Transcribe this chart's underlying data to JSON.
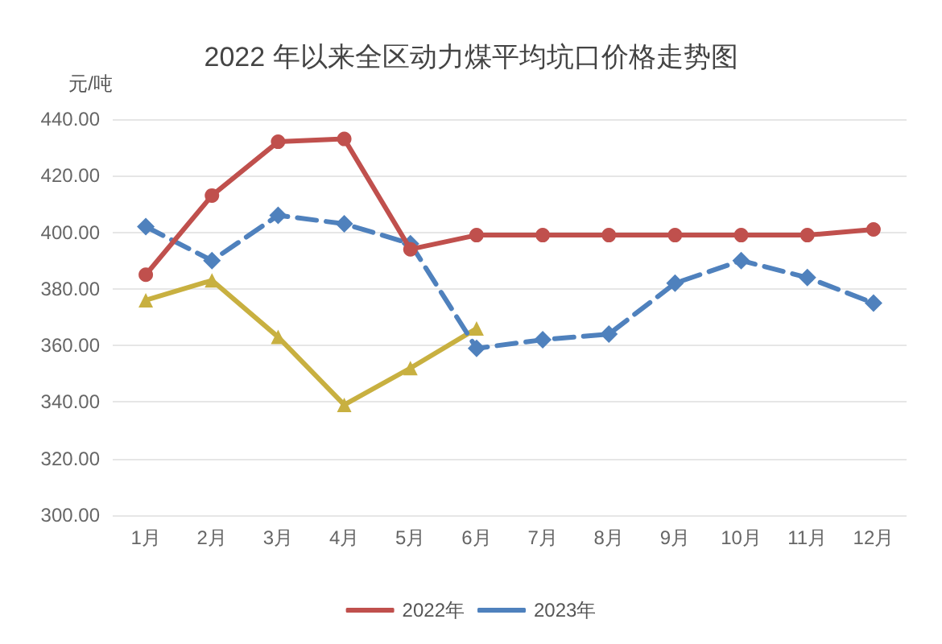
{
  "chart_data": {
    "type": "line",
    "title": "2022 年以来全区动力煤平均坑口价格走势图",
    "ylabel": "元/吨",
    "categories": [
      "1月",
      "2月",
      "3月",
      "4月",
      "5月",
      "6月",
      "7月",
      "8月",
      "9月",
      "10月",
      "11月",
      "12月"
    ],
    "series": [
      {
        "name": "2022年",
        "color": "#c0504d",
        "marker": "circle",
        "line_style": "solid",
        "values": [
          385,
          413,
          432,
          433,
          394,
          399,
          399,
          399,
          399,
          399,
          399,
          401
        ]
      },
      {
        "name": "2023年",
        "color": "#4f81bd",
        "marker": "diamond",
        "line_style": "dashed",
        "values": [
          402,
          390,
          406,
          403,
          396,
          359,
          362,
          364,
          382,
          390,
          384,
          375
        ]
      },
      {
        "color": "#c8b040",
        "marker": "triangle",
        "line_style": "solid",
        "values": [
          376,
          383,
          363,
          339,
          352,
          366,
          null,
          null,
          null,
          null,
          null,
          null
        ]
      }
    ],
    "ylim": [
      300,
      440
    ],
    "yticks": [
      {
        "value": 300,
        "label": "300.00"
      },
      {
        "value": 320,
        "label": "320.00"
      },
      {
        "value": 340,
        "label": "340.00"
      },
      {
        "value": 360,
        "label": "360.00"
      },
      {
        "value": 380,
        "label": "380.00"
      },
      {
        "value": 400,
        "label": "400.00"
      },
      {
        "value": 420,
        "label": "420.00"
      },
      {
        "value": 440,
        "label": "440.00"
      }
    ],
    "grid": "y",
    "legend": "bottom"
  }
}
